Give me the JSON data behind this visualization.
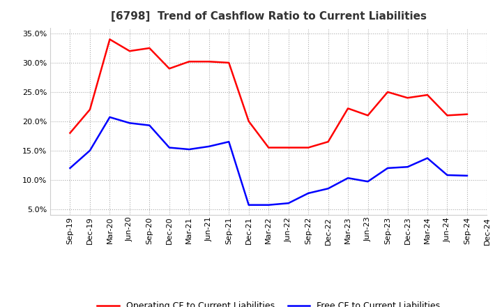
{
  "title": "[6798]  Trend of Cashflow Ratio to Current Liabilities",
  "x_labels": [
    "Sep-19",
    "Dec-19",
    "Mar-20",
    "Jun-20",
    "Sep-20",
    "Dec-20",
    "Mar-21",
    "Jun-21",
    "Sep-21",
    "Dec-21",
    "Mar-22",
    "Jun-22",
    "Sep-22",
    "Dec-22",
    "Mar-23",
    "Jun-23",
    "Sep-23",
    "Dec-23",
    "Mar-24",
    "Jun-24",
    "Sep-24",
    "Dec-24"
  ],
  "operating_cf": [
    0.18,
    0.22,
    0.34,
    0.32,
    0.325,
    0.29,
    0.302,
    0.302,
    0.3,
    0.2,
    0.155,
    0.155,
    0.155,
    0.165,
    0.222,
    0.21,
    0.25,
    0.24,
    0.245,
    0.21,
    0.212,
    null
  ],
  "free_cf": [
    0.12,
    0.15,
    0.207,
    0.197,
    0.193,
    0.155,
    0.152,
    0.157,
    0.165,
    0.057,
    0.057,
    0.06,
    0.077,
    0.085,
    0.103,
    0.097,
    0.12,
    0.122,
    0.137,
    0.108,
    0.107,
    null
  ],
  "ylim": [
    0.04,
    0.36
  ],
  "yticks": [
    0.05,
    0.1,
    0.15,
    0.2,
    0.25,
    0.3,
    0.35
  ],
  "operating_color": "#ff0000",
  "free_color": "#0000ff",
  "background_color": "#ffffff",
  "grid_color": "#aaaaaa",
  "title_fontsize": 11,
  "title_color": "#333333",
  "tick_fontsize": 8,
  "legend_labels": [
    "Operating CF to Current Liabilities",
    "Free CF to Current Liabilities"
  ]
}
